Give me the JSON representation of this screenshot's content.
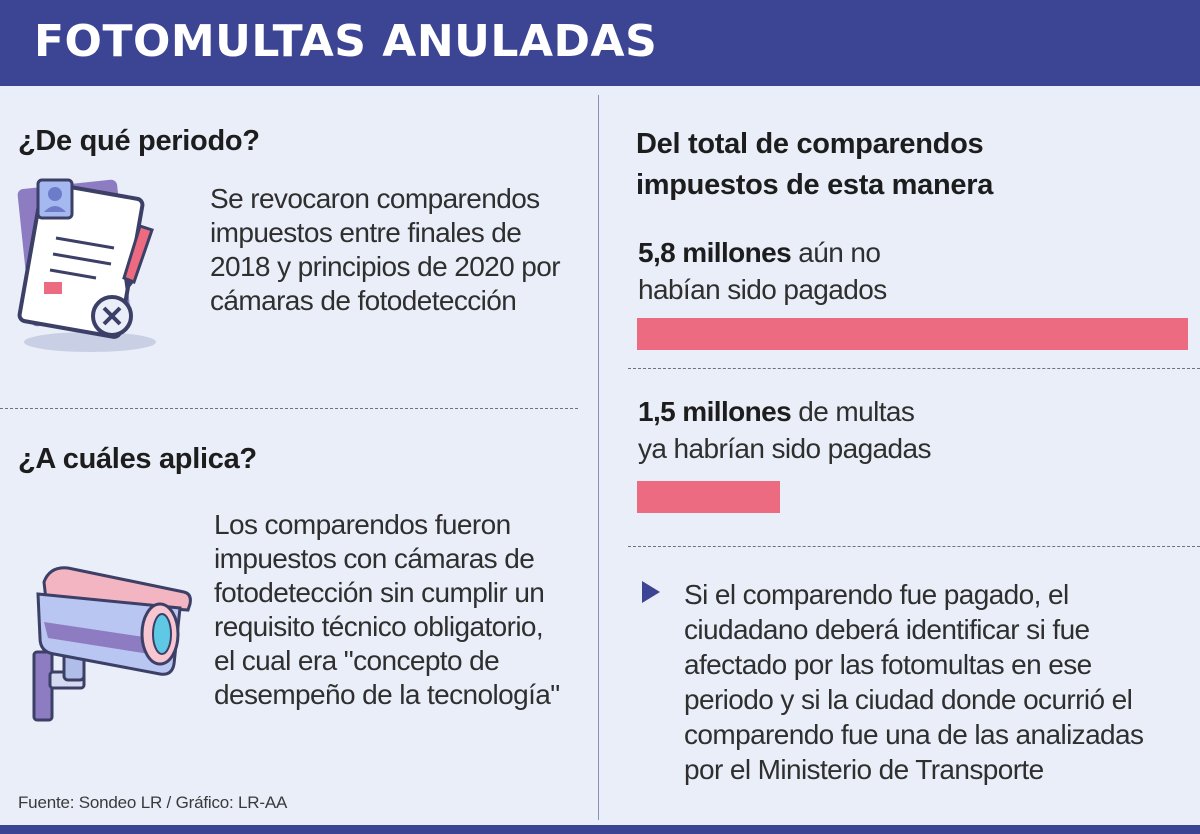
{
  "title": "FOTOMULTAS ANULADAS",
  "left": {
    "q1": {
      "heading": "¿De qué periodo?",
      "lines": [
        "Se revocaron comparendos",
        "impuestos entre finales de",
        "2018 y principios de 2020 por",
        "cámaras de fotodetección"
      ],
      "icon": "document-cancel-icon"
    },
    "q2": {
      "heading": "¿A cuáles aplica?",
      "lines": [
        "Los comparendos fueron",
        "impuestos con cámaras de",
        "fotodetección sin cumplir un",
        "requisito técnico obligatorio,",
        "el cual era \"concepto de",
        "desempeño de la tecnología\""
      ],
      "icon": "security-camera-icon"
    }
  },
  "right": {
    "heading_lines": [
      "Del total de comparendos",
      "impuestos de esta manera"
    ],
    "stats": [
      {
        "bold": "5,8 millones",
        "text": " aún no",
        "line2": "habían sido pagados"
      },
      {
        "bold": "1,5 millones",
        "text": " de multas",
        "line2": "ya habrían sido pagadas"
      }
    ],
    "note_lines": [
      "Si el comparendo fue pagado, el",
      "ciudadano deberá identificar si fue",
      "afectado por las fotomultas en ese",
      "periodo y si la ciudad donde ocurrió el",
      "comparendo fue una de las analizadas",
      "por el Ministerio de Transporte"
    ]
  },
  "source": "Fuente: Sondeo LR / Gráfico: LR-AA",
  "colors": {
    "header": "#3c4494",
    "bar": "#ed6b80",
    "background": "#e9eef8"
  },
  "chart_data": {
    "type": "bar",
    "orientation": "horizontal",
    "categories": [
      "aún no habían sido pagados",
      "ya habrían sido pagadas"
    ],
    "values": [
      5.8,
      1.5
    ],
    "unit": "millones",
    "title": "Del total de comparendos impuestos de esta manera"
  }
}
